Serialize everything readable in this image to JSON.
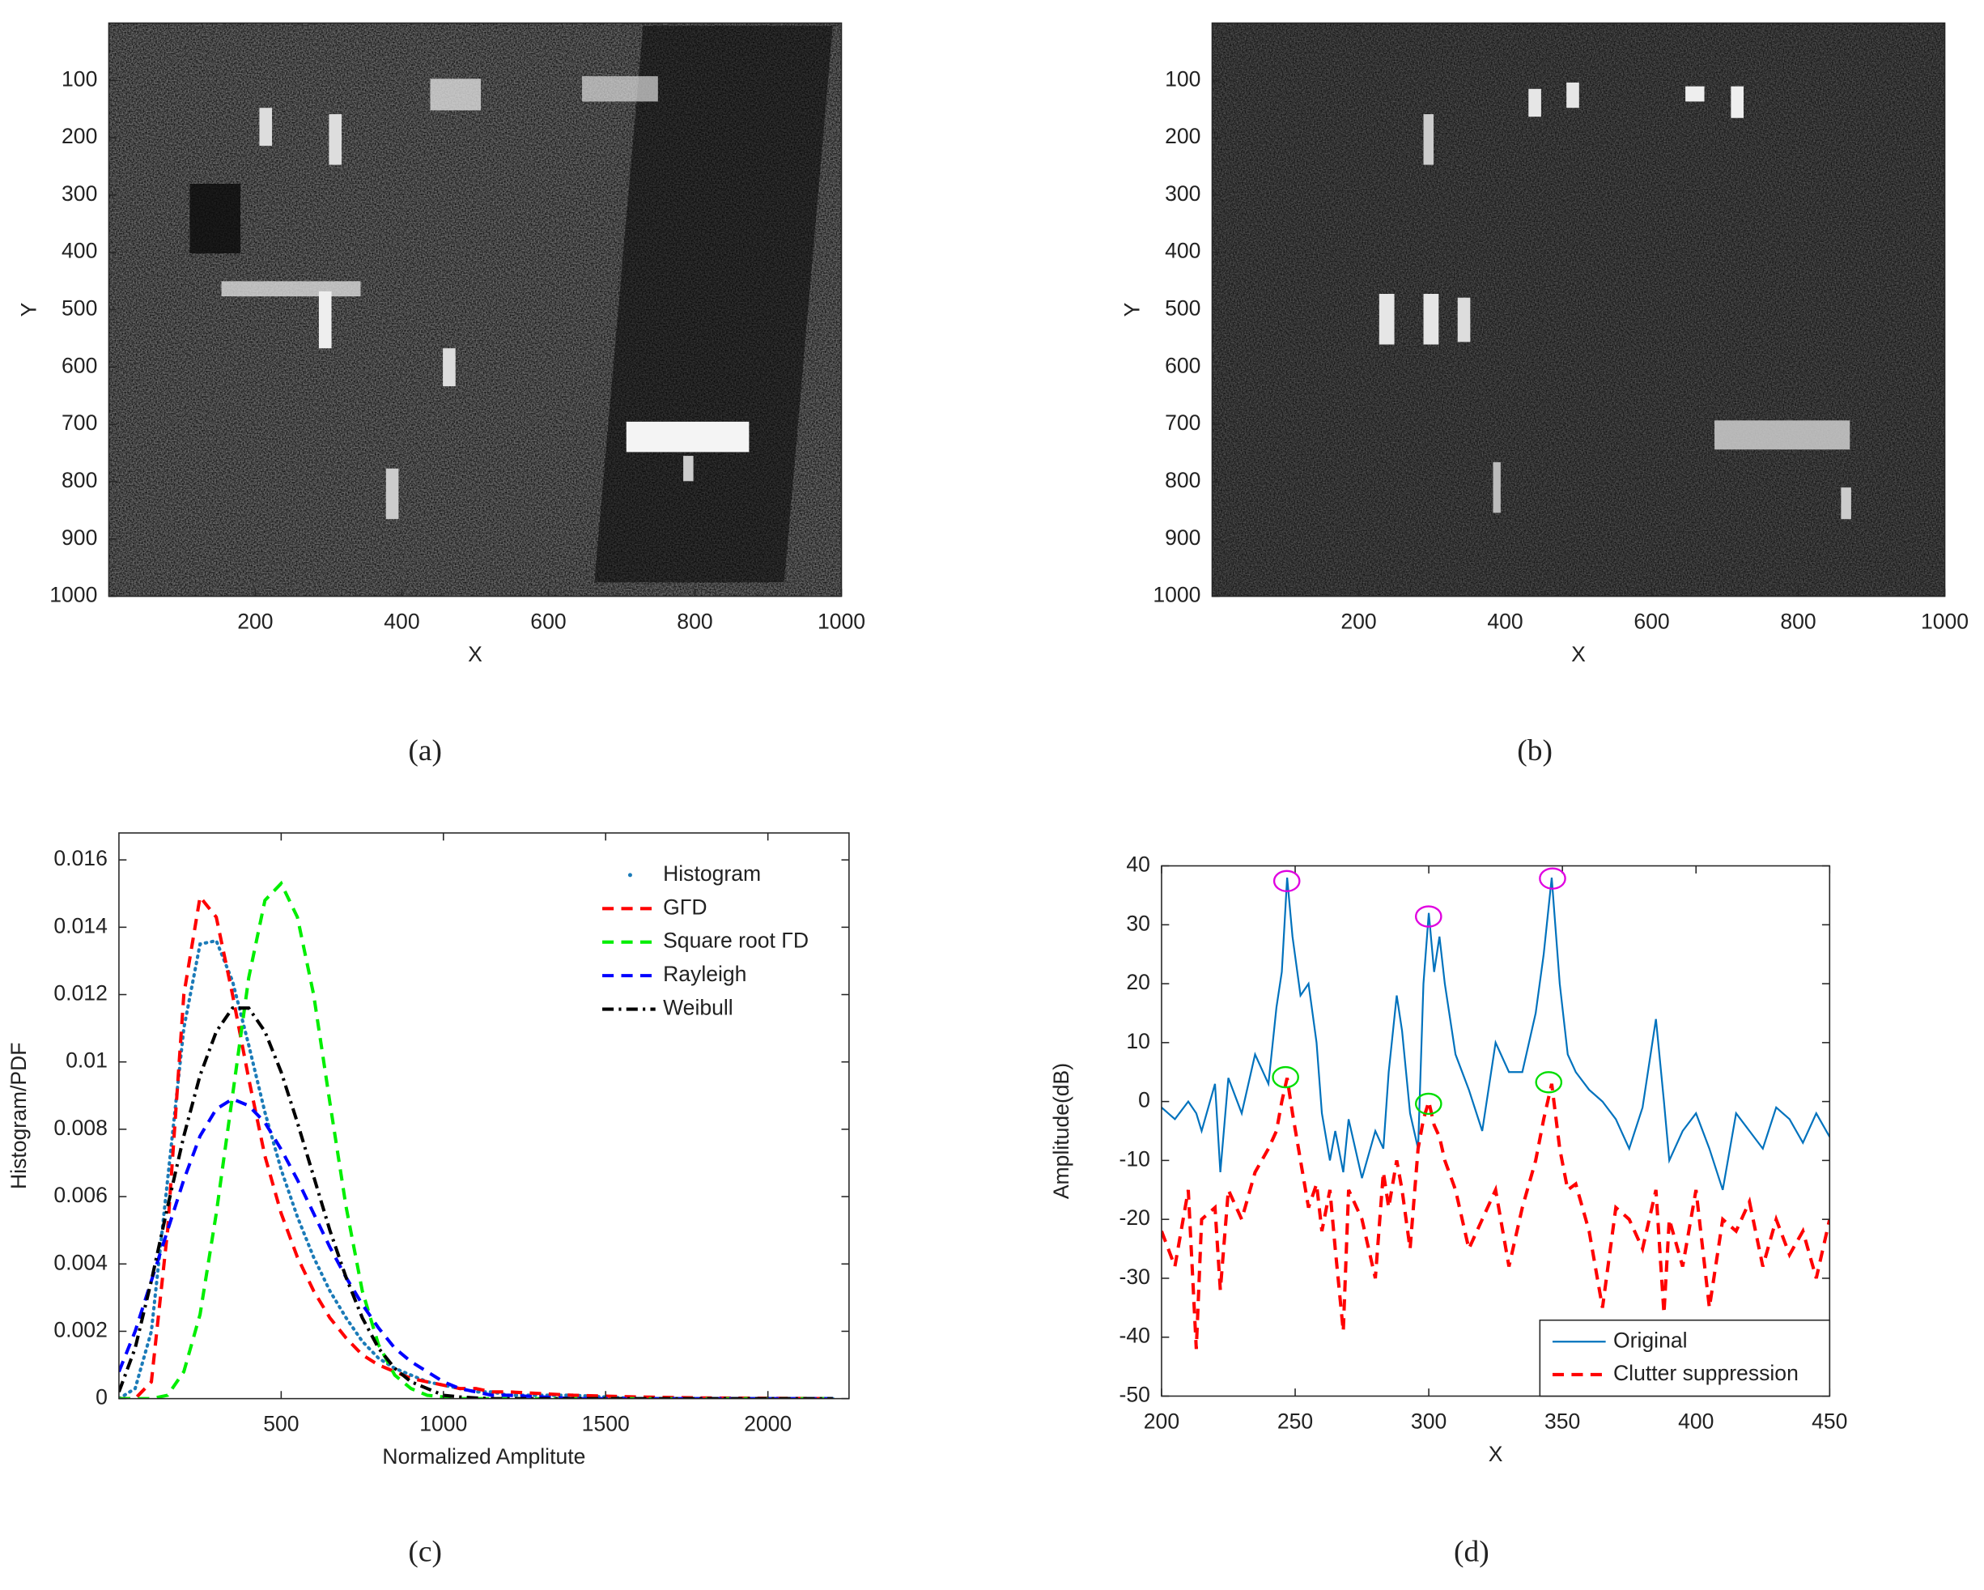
{
  "chart_data": [
    {
      "type": "image",
      "caption": "(a)",
      "xlabel": "X",
      "ylabel": "Y",
      "xlim": [
        0,
        1000
      ],
      "ylim": [
        1000,
        0
      ],
      "xticks": [
        200,
        400,
        600,
        800,
        1000
      ],
      "yticks": [
        100,
        200,
        300,
        400,
        500,
        600,
        700,
        800,
        900,
        1000
      ]
    },
    {
      "type": "image",
      "caption": "(b)",
      "xlabel": "X",
      "ylabel": "Y",
      "xlim": [
        0,
        1000
      ],
      "ylim": [
        1000,
        0
      ],
      "xticks": [
        200,
        400,
        600,
        800,
        1000
      ],
      "yticks": [
        100,
        200,
        300,
        400,
        500,
        600,
        700,
        800,
        900,
        1000
      ]
    },
    {
      "type": "line",
      "caption": "(c)",
      "xlabel": "Normalized Amplitute",
      "ylabel": "Histogram/PDF",
      "xlim": [
        0,
        2250
      ],
      "ylim": [
        0,
        0.0168
      ],
      "xticks": [
        500,
        1000,
        1500,
        2000
      ],
      "yticks": [
        0,
        0.002,
        0.004,
        0.006,
        0.008,
        0.01,
        0.012,
        0.014,
        0.016
      ],
      "legend": "upper right",
      "legend_box": false,
      "x": [
        0,
        50,
        100,
        150,
        200,
        250,
        300,
        350,
        400,
        450,
        500,
        550,
        600,
        650,
        700,
        750,
        800,
        850,
        900,
        950,
        1000,
        1050,
        1100,
        1150,
        1200,
        1400,
        1600,
        1800,
        2000,
        2200
      ],
      "series": [
        {
          "name": "Histogram",
          "color": "#1b7bb8",
          "style": "dotted",
          "values": [
            0,
            0.0003,
            0.002,
            0.0065,
            0.011,
            0.0135,
            0.0136,
            0.0124,
            0.0105,
            0.0085,
            0.0068,
            0.0054,
            0.0042,
            0.0032,
            0.0024,
            0.0017,
            0.0012,
            0.0009,
            0.0007,
            0.0005,
            0.0004,
            0.0003,
            0.0002,
            0.0002,
            0.0001,
            0.0001,
            0,
            0,
            0,
            0
          ]
        },
        {
          "name": "GΓD",
          "color": "#ff0000",
          "style": "dashed",
          "values": [
            0,
            0,
            0.0005,
            0.005,
            0.012,
            0.0149,
            0.0143,
            0.012,
            0.0095,
            0.0072,
            0.0055,
            0.0042,
            0.0032,
            0.0024,
            0.0018,
            0.0013,
            0.001,
            0.0008,
            0.0006,
            0.0005,
            0.0004,
            0.0003,
            0.0003,
            0.0002,
            0.0002,
            0.0001,
            5e-05,
            2e-05,
            1e-05,
            0
          ]
        },
        {
          "name": "Square root ΓD",
          "color": "#00ee00",
          "style": "dashed",
          "values": [
            0,
            0,
            0,
            0.0001,
            0.0008,
            0.0025,
            0.0055,
            0.009,
            0.0125,
            0.0148,
            0.0153,
            0.0143,
            0.012,
            0.0088,
            0.0057,
            0.0032,
            0.0016,
            0.0007,
            0.0003,
            0.0001,
            5e-05,
            0,
            0,
            0,
            0,
            0,
            0,
            0,
            0,
            0
          ]
        },
        {
          "name": "Rayleigh",
          "color": "#0000ff",
          "style": "dashed",
          "values": [
            0.0008,
            0.002,
            0.0035,
            0.005,
            0.0065,
            0.0078,
            0.0086,
            0.0089,
            0.0087,
            0.0082,
            0.0074,
            0.0065,
            0.0055,
            0.0045,
            0.0036,
            0.0028,
            0.0021,
            0.0015,
            0.0011,
            0.0008,
            0.0005,
            0.0003,
            0.0002,
            0.0001,
            0.0001,
            0,
            0,
            0,
            0,
            0
          ]
        },
        {
          "name": "Weibull",
          "color": "#000000",
          "style": "dashdot",
          "values": [
            0.0002,
            0.0015,
            0.0035,
            0.0057,
            0.0078,
            0.0096,
            0.0109,
            0.0116,
            0.0116,
            0.0109,
            0.0097,
            0.0082,
            0.0066,
            0.005,
            0.0036,
            0.0024,
            0.0015,
            0.0009,
            0.0005,
            0.0003,
            0.0001,
            5e-05,
            2e-05,
            0,
            0,
            0,
            0,
            0,
            0,
            0
          ]
        }
      ]
    },
    {
      "type": "line",
      "caption": "(d)",
      "xlabel": "X",
      "ylabel": "Amplitude(dB)",
      "xlim": [
        200,
        450
      ],
      "ylim": [
        -50,
        40
      ],
      "xticks": [
        200,
        250,
        300,
        350,
        400,
        450
      ],
      "yticks": [
        -50,
        -40,
        -30,
        -20,
        -10,
        0,
        10,
        20,
        30,
        40
      ],
      "legend": "lower right",
      "legend_box": true,
      "x": [
        200,
        205,
        210,
        213,
        215,
        220,
        222,
        225,
        230,
        235,
        240,
        243,
        245,
        247,
        249,
        252,
        255,
        258,
        260,
        263,
        265,
        268,
        270,
        275,
        280,
        283,
        285,
        288,
        290,
        293,
        296,
        298,
        300,
        302,
        304,
        306,
        310,
        315,
        320,
        325,
        330,
        335,
        340,
        343,
        346,
        349,
        352,
        355,
        360,
        365,
        370,
        375,
        380,
        385,
        388,
        390,
        395,
        400,
        405,
        410,
        415,
        420,
        425,
        430,
        435,
        440,
        445,
        450
      ],
      "series": [
        {
          "name": "Original",
          "color": "#0072bd",
          "style": "solid",
          "values": [
            -1,
            -3,
            0,
            -2,
            -5,
            3,
            -12,
            4,
            -2,
            8,
            3,
            16,
            22,
            38,
            28,
            18,
            20,
            10,
            -2,
            -10,
            -5,
            -12,
            -3,
            -13,
            -5,
            -8,
            5,
            18,
            12,
            -2,
            -8,
            20,
            32,
            22,
            28,
            20,
            8,
            2,
            -5,
            10,
            5,
            5,
            15,
            25,
            38,
            20,
            8,
            5,
            2,
            0,
            -3,
            -8,
            -1,
            14,
            0,
            -10,
            -5,
            -2,
            -8,
            -15,
            -2,
            -5,
            -8,
            -1,
            -3,
            -7,
            -2,
            -6
          ]
        },
        {
          "name": "Clutter suppression",
          "color": "#ff0000",
          "style": "dashed",
          "values": [
            -22,
            -28,
            -15,
            -42,
            -20,
            -18,
            -32,
            -15,
            -20,
            -12,
            -8,
            -5,
            0,
            4,
            -2,
            -10,
            -18,
            -14,
            -22,
            -15,
            -25,
            -39,
            -15,
            -20,
            -30,
            -12,
            -18,
            -10,
            -15,
            -25,
            -8,
            -3,
            0,
            -4,
            -6,
            -10,
            -15,
            -25,
            -20,
            -15,
            -28,
            -18,
            -10,
            -3,
            3,
            -8,
            -15,
            -14,
            -22,
            -35,
            -18,
            -20,
            -25,
            -15,
            -36,
            -20,
            -28,
            -15,
            -35,
            -20,
            -22,
            -17,
            -28,
            -20,
            -26,
            -22,
            -30,
            -20
          ]
        }
      ]
    }
  ]
}
